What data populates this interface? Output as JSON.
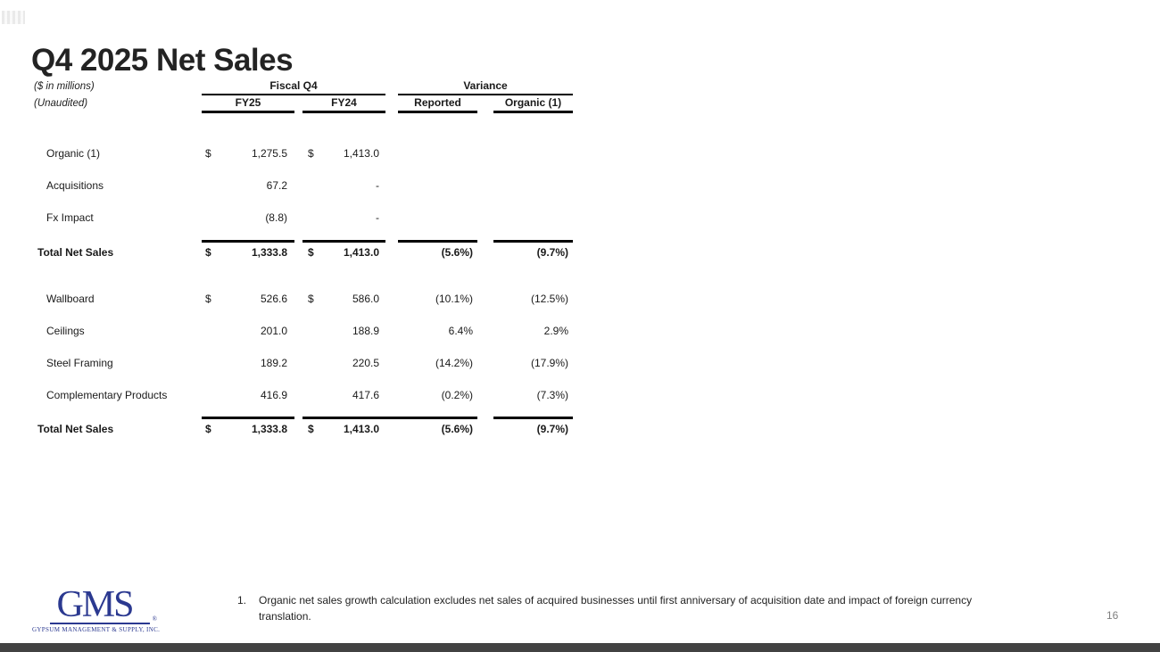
{
  "slide": {
    "title": "Q4 2025 Net Sales",
    "units_note": "($ in millions)",
    "unaudited_note": "(Unaudited)",
    "page_number": "16",
    "footnote_number": "1.",
    "footnote_text": "Organic net sales growth calculation excludes net sales of acquired businesses until first anniversary of acquisition date and impact of foreign currency translation."
  },
  "logo": {
    "text": "GMS",
    "reg_mark": "®",
    "subtext": "GYPSUM MANAGEMENT & SUPPLY, INC.",
    "color": "#2b3990"
  },
  "table": {
    "group_headers": [
      "Fiscal Q4",
      "Variance"
    ],
    "column_headers": [
      "FY25",
      "FY24",
      "Reported",
      "Organic (1)"
    ],
    "rows": [
      {
        "label": "Organic (1)",
        "fy25_currency": "$",
        "fy25": "1,275.5",
        "fy24_currency": "$",
        "fy24": "1,413.0",
        "reported": "",
        "organic": ""
      },
      {
        "label": "Acquisitions",
        "fy25_currency": "",
        "fy25": "67.2",
        "fy24_currency": "",
        "fy24": "-",
        "reported": "",
        "organic": ""
      },
      {
        "label": "Fx Impact",
        "fy25_currency": "",
        "fy25": "(8.8)",
        "fy24_currency": "",
        "fy24": "-",
        "reported": "",
        "organic": ""
      },
      {
        "label": "Total Net Sales",
        "fy25_currency": "$",
        "fy25": "1,333.8",
        "fy24_currency": "$",
        "fy24": "1,413.0",
        "reported": "(5.6%)",
        "organic": "(9.7%)"
      },
      {
        "label": "Wallboard",
        "fy25_currency": "$",
        "fy25": "526.6",
        "fy24_currency": "$",
        "fy24": "586.0",
        "reported": "(10.1%)",
        "organic": "(12.5%)"
      },
      {
        "label": "Ceilings",
        "fy25_currency": "",
        "fy25": "201.0",
        "fy24_currency": "",
        "fy24": "188.9",
        "reported": "6.4%",
        "organic": "2.9%"
      },
      {
        "label": "Steel Framing",
        "fy25_currency": "",
        "fy25": "189.2",
        "fy24_currency": "",
        "fy24": "220.5",
        "reported": "(14.2%)",
        "organic": "(17.9%)"
      },
      {
        "label": "Complementary Products",
        "fy25_currency": "",
        "fy25": "416.9",
        "fy24_currency": "",
        "fy24": "417.6",
        "reported": "(0.2%)",
        "organic": "(7.3%)"
      },
      {
        "label": "Total Net Sales",
        "fy25_currency": "$",
        "fy25": "1,333.8",
        "fy24_currency": "$",
        "fy24": "1,413.0",
        "reported": "(5.6%)",
        "organic": "(9.7%)"
      }
    ]
  },
  "colors": {
    "bottom_bar": "#424242",
    "rule": "#000000",
    "logo_navy": "#2b3990",
    "page_number_gray": "#7f7f7f"
  }
}
